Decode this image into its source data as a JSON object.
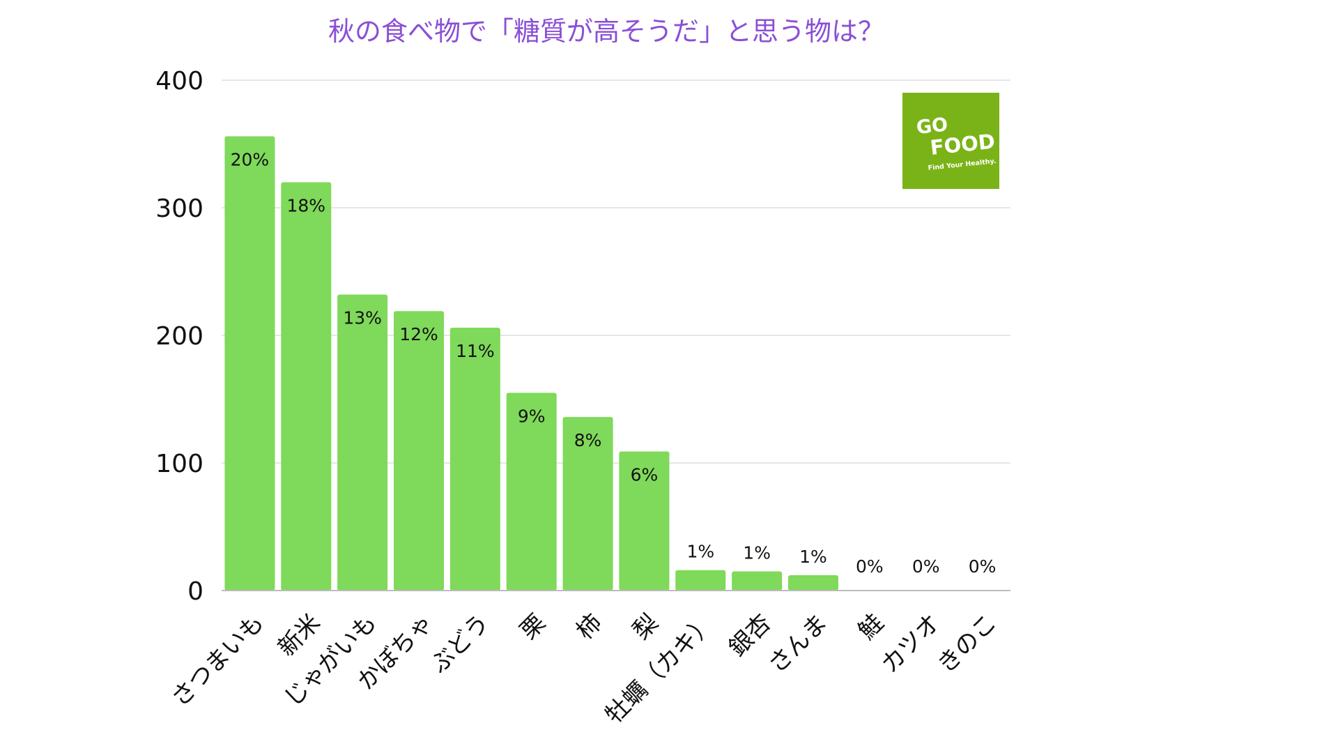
{
  "chart_data": {
    "type": "bar",
    "title": "秋の食べ物で「糖質が高そうだ」と思う物は？",
    "title_color": "#8a4fd6",
    "bar_color": "#7fd95a",
    "grid_color": "#dddddd",
    "xlabel": "",
    "ylabel": "",
    "ylim": [
      0,
      400
    ],
    "yticks": [
      0,
      100,
      200,
      300,
      400
    ],
    "categories": [
      "さつまいも",
      "新米",
      "じゃがいも",
      "かぼちゃ",
      "ぶどう",
      "栗",
      "柿",
      "梨",
      "牡蠣（カキ）",
      "銀杏",
      "さんま",
      "鮭",
      "カツオ",
      "きのこ"
    ],
    "values": [
      356,
      320,
      232,
      219,
      206,
      155,
      136,
      109,
      16,
      15,
      12,
      0,
      0,
      0
    ],
    "labels": [
      "20%",
      "18%",
      "13%",
      "12%",
      "11%",
      "9%",
      "8%",
      "6%",
      "1%",
      "1%",
      "1%",
      "0%",
      "0%",
      "0%"
    ]
  },
  "logo": {
    "line1": "GO",
    "line2": "FOOD",
    "tagline": "Find Your Healthy.",
    "background": "#7ab317"
  }
}
